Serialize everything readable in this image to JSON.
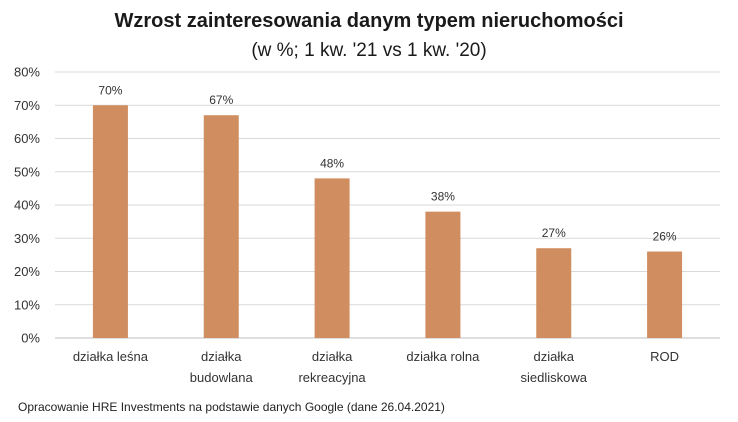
{
  "chart_data": {
    "type": "bar",
    "title": "Wzrost zainteresowania danym typem nieruchomości",
    "subtitle": "(w %; 1 kw. '21 vs 1 kw. '20)",
    "categories": [
      [
        "działka leśna"
      ],
      [
        "działka",
        "budowlana"
      ],
      [
        "działka",
        "rekreacyjna"
      ],
      [
        "działka rolna"
      ],
      [
        "działka",
        "siedliskowa"
      ],
      [
        "ROD"
      ]
    ],
    "values": [
      70,
      67,
      48,
      38,
      27,
      26
    ],
    "data_labels": [
      "70%",
      "67%",
      "48%",
      "38%",
      "27%",
      "26%"
    ],
    "y_ticks": [
      "0%",
      "10%",
      "20%",
      "30%",
      "40%",
      "50%",
      "60%",
      "70%",
      "80%"
    ],
    "ylim": [
      0,
      80
    ],
    "xlabel": "",
    "ylabel": "",
    "grid": true,
    "legend": "none",
    "bar_color": "#D08D5F",
    "gridline_color": "#D9D9D9"
  },
  "footer": {
    "source": "Opracowanie HRE Investments na podstawie danych Google (dane 26.04.2021)"
  }
}
